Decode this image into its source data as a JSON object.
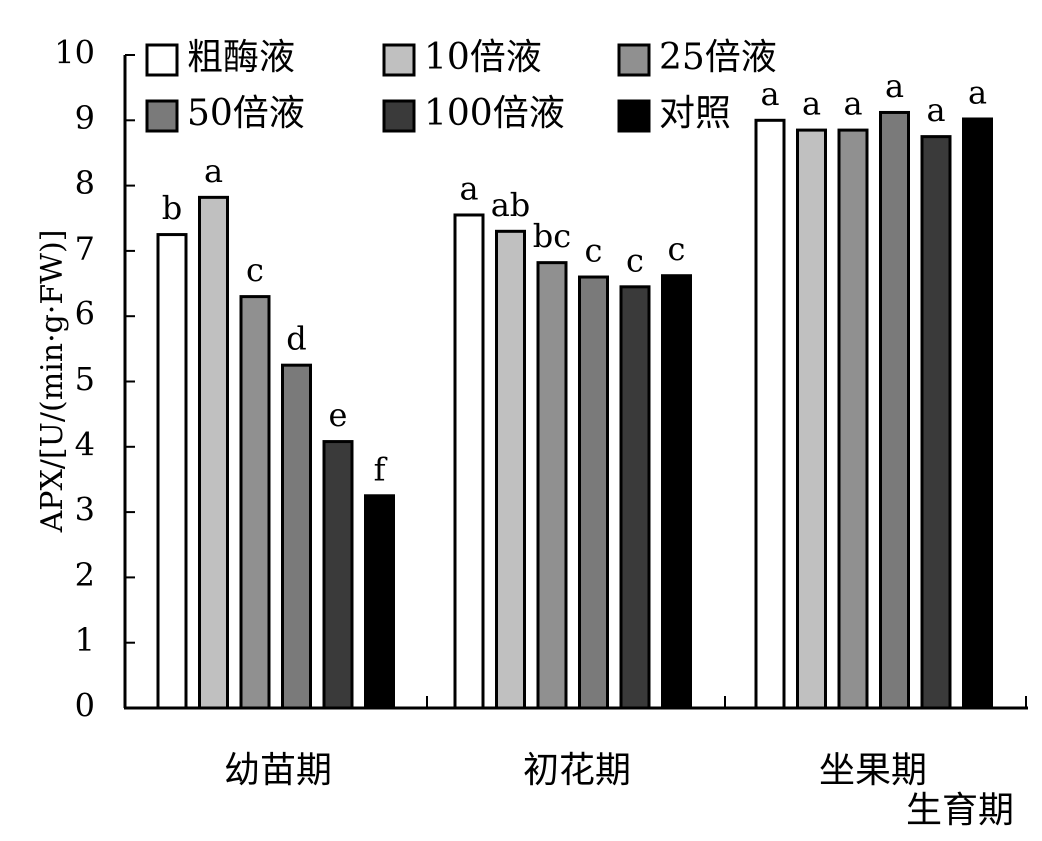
{
  "chart_data": {
    "type": "bar",
    "categories": [
      "幼苗期",
      "初花期",
      "坐果期"
    ],
    "xlabel": "生育期",
    "ylabel": "APX/[U/(min·g·FW)]",
    "ylim": [
      0,
      10
    ],
    "yticks": [
      "0",
      "1",
      "2",
      "3",
      "4",
      "5",
      "6",
      "7",
      "8",
      "9",
      "10"
    ],
    "grid": false,
    "legend_position": "top",
    "series": [
      {
        "name": "粗酶液",
        "color": "#ffffff",
        "values": [
          7.25,
          7.55,
          9.0
        ],
        "labels": [
          "b",
          "a",
          "a"
        ]
      },
      {
        "name": "10倍液",
        "color": "#c0c0c0",
        "values": [
          7.82,
          7.3,
          8.85
        ],
        "labels": [
          "a",
          "ab",
          "a"
        ]
      },
      {
        "name": "25倍液",
        "color": "#909090",
        "values": [
          6.3,
          6.82,
          8.85
        ],
        "labels": [
          "c",
          "bc",
          "a"
        ]
      },
      {
        "name": "50倍液",
        "color": "#7a7a7a",
        "values": [
          5.25,
          6.6,
          9.12
        ],
        "labels": [
          "d",
          "c",
          "a"
        ]
      },
      {
        "name": "100倍液",
        "color": "#3a3a3a",
        "values": [
          4.08,
          6.45,
          8.75
        ],
        "labels": [
          "e",
          "c",
          "a"
        ]
      },
      {
        "name": "对照",
        "color": "#000000",
        "values": [
          3.25,
          6.62,
          9.02
        ],
        "labels": [
          "f",
          "c",
          "a"
        ]
      }
    ]
  }
}
